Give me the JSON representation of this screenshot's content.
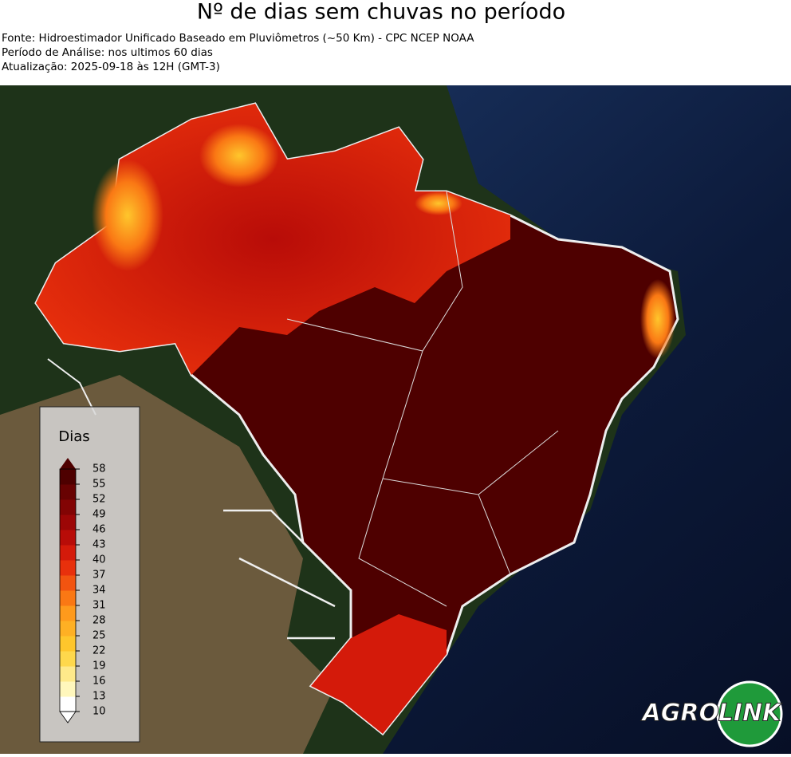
{
  "header": {
    "title": "Nº de dias sem chuvas no período",
    "lines": [
      "Fonte: Hidroestimador Unificado Baseado em Pluviômetros (~50 Km) - CPC NCEP NOAA",
      "Período de Análise: nos ultimos 60 dias",
      "Atualização: 2025-09-18 às 12H (GMT-3)"
    ]
  },
  "legend": {
    "title": "Dias",
    "ticks": [
      10,
      13,
      16,
      19,
      22,
      25,
      28,
      31,
      34,
      37,
      40,
      43,
      46,
      49,
      52,
      55,
      58
    ],
    "colors": [
      "#ffffff",
      "#fff7bc",
      "#fee98a",
      "#fed84c",
      "#fec62c",
      "#feb024",
      "#fe9a1c",
      "#fa7814",
      "#f25410",
      "#e8300c",
      "#d41a0a",
      "#b80c08",
      "#9c0606",
      "#820404",
      "#680202",
      "#4e0000"
    ]
  },
  "logo": {
    "left": "AGRO",
    "right": "LINK"
  }
}
